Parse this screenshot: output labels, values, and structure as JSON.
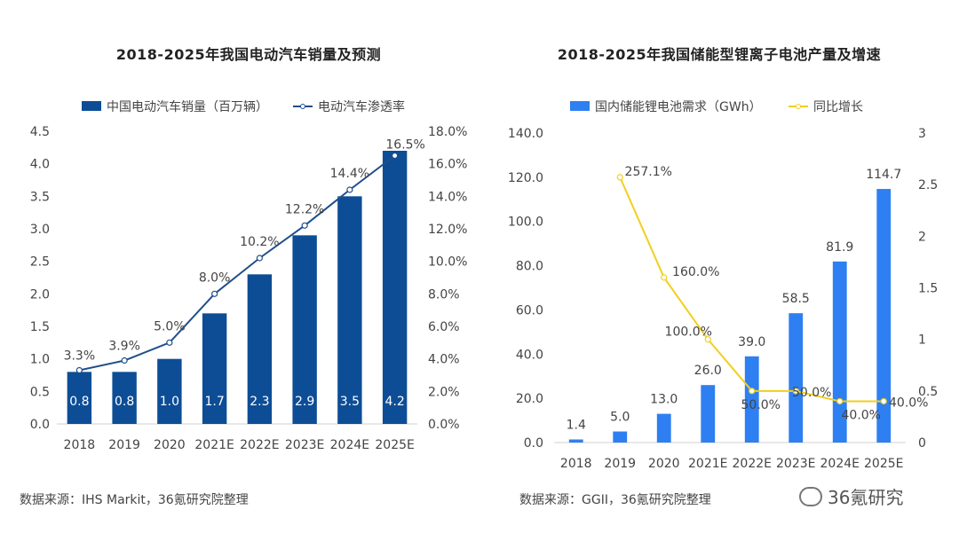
{
  "colors": {
    "left_bar": "#0d4d96",
    "left_line": "#1f4e8c",
    "right_bar": "#2e7ff1",
    "right_line": "#f2cf1d",
    "text": "#444444"
  },
  "watermark": {
    "text": "36氪研究",
    "icon": "wechat-icon"
  },
  "chart_data": [
    {
      "type": "bar",
      "title": "2018-2025年我国电动汽车销量及预测",
      "source": "数据来源：IHS Markit，36氪研究院整理",
      "categories": [
        "2018",
        "2019",
        "2020",
        "2021E",
        "2022E",
        "2023E",
        "2024E",
        "2025E"
      ],
      "series": [
        {
          "name": "中国电动汽车销量（百万辆）",
          "type": "bar",
          "axis": "left",
          "values": [
            0.8,
            0.8,
            1.0,
            1.7,
            2.3,
            2.9,
            3.5,
            4.2
          ],
          "labels": [
            "0.8",
            "0.8",
            "1.0",
            "1.7",
            "2.3",
            "2.9",
            "3.5",
            "4.2"
          ]
        },
        {
          "name": "电动汽车渗透率",
          "type": "line",
          "axis": "right",
          "values": [
            3.3,
            3.9,
            5.0,
            8.0,
            10.2,
            12.2,
            14.4,
            16.5
          ],
          "labels": [
            "3.3%",
            "3.9%",
            "5.0%",
            "8.0%",
            "10.2%",
            "12.2%",
            "14.4%",
            "16.5%"
          ]
        }
      ],
      "y_left": {
        "ylim": [
          0,
          4.5
        ],
        "ticks": [
          "0.0",
          "0.5",
          "1.0",
          "1.5",
          "2.0",
          "2.5",
          "3.0",
          "3.5",
          "4.0",
          "4.5"
        ]
      },
      "y_right": {
        "ylim": [
          0,
          18
        ],
        "ticks": [
          "0.0%",
          "2.0%",
          "4.0%",
          "6.0%",
          "8.0%",
          "10.0%",
          "12.0%",
          "14.0%",
          "16.0%",
          "18.0%"
        ]
      },
      "legend": "top-center",
      "grid": false
    },
    {
      "type": "bar",
      "title": "2018-2025年我国储能型锂离子电池产量及增速",
      "source": "数据来源：GGII，36氪研究院整理",
      "categories": [
        "2018",
        "2019",
        "2020",
        "2021E",
        "2022E",
        "2023E",
        "2024E",
        "2025E"
      ],
      "series": [
        {
          "name": "国内储能锂电池需求（GWh）",
          "type": "bar",
          "axis": "left",
          "values": [
            1.4,
            5.0,
            13.0,
            26.0,
            39.0,
            58.5,
            81.9,
            114.7
          ],
          "labels": [
            "1.4",
            "5.0",
            "13.0",
            "26.0",
            "39.0",
            "58.5",
            "81.9",
            "114.7"
          ]
        },
        {
          "name": "同比增长",
          "type": "line",
          "axis": "right",
          "values": [
            null,
            2.571,
            1.6,
            1.0,
            0.5,
            0.5,
            0.4,
            0.4
          ],
          "labels": [
            "",
            "257.1%",
            "160.0%",
            "100.0%",
            "50.0%",
            "50.0%",
            "40.0%",
            "40.0%"
          ]
        }
      ],
      "y_left": {
        "ylim": [
          0,
          140
        ],
        "ticks": [
          "0.0",
          "20.0",
          "40.0",
          "60.0",
          "80.0",
          "100.0",
          "120.0",
          "140.0"
        ]
      },
      "y_right": {
        "ylim": [
          0,
          3
        ],
        "ticks": [
          "0",
          "0.5",
          "1",
          "1.5",
          "2",
          "2.5",
          "3"
        ]
      },
      "legend": "top-center",
      "grid": false
    }
  ]
}
